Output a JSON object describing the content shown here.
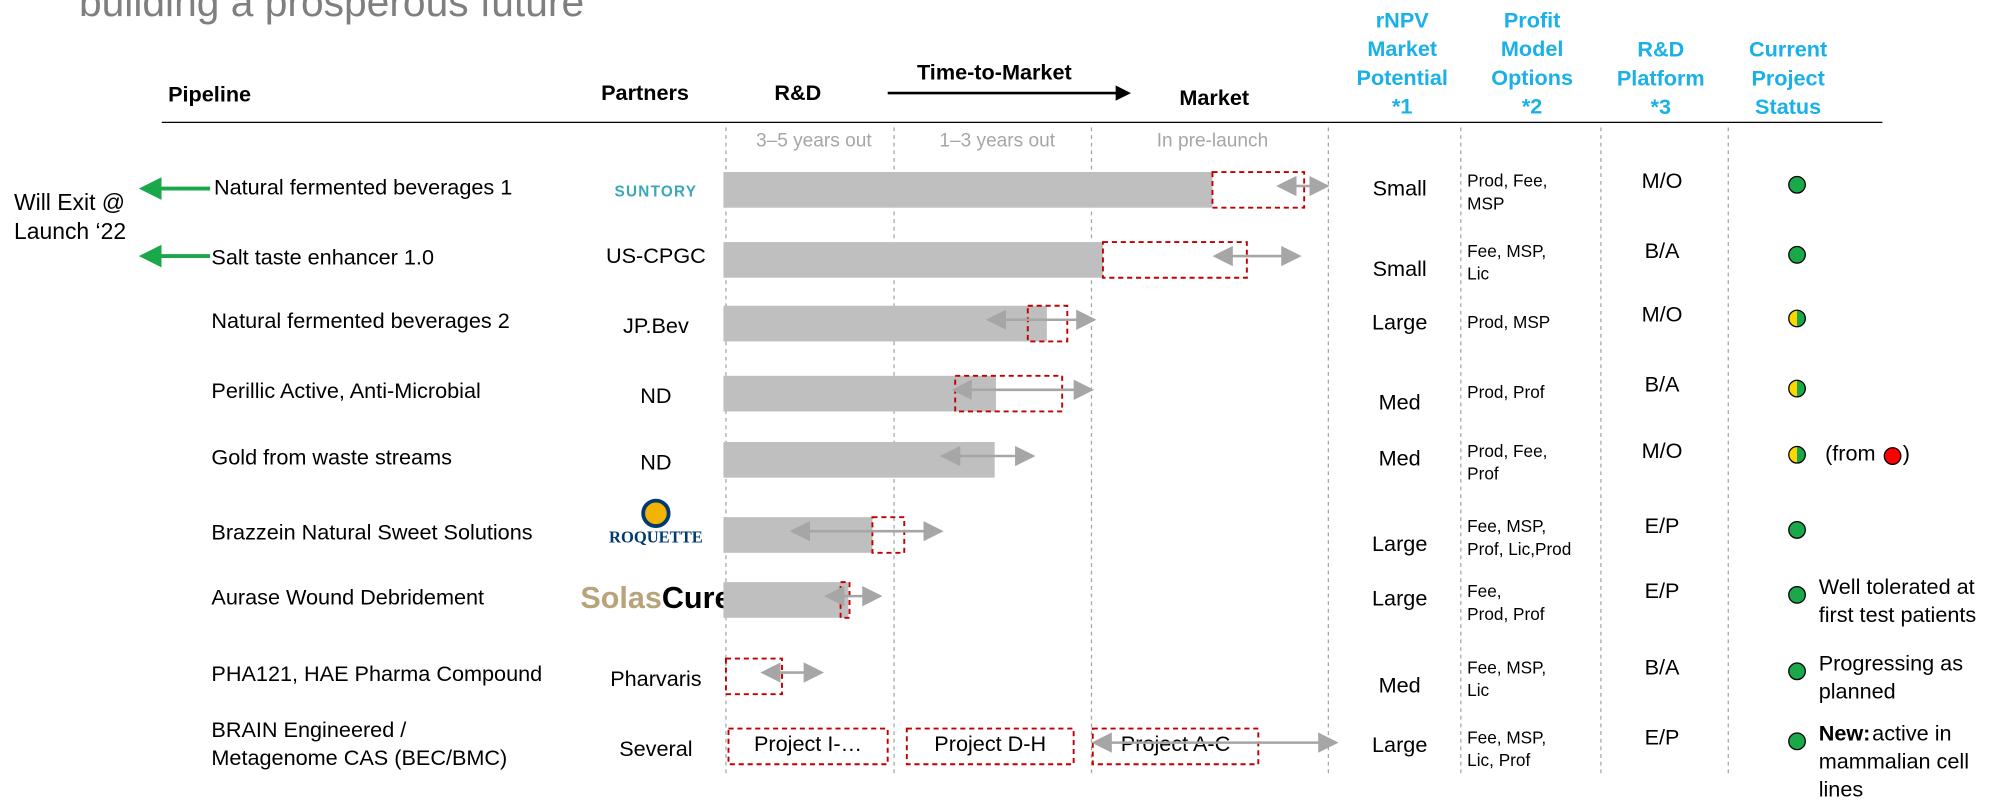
{
  "title": "building a prosperous future",
  "headers": {
    "pipeline": "Pipeline",
    "partners": "Partners",
    "rd": "R&D",
    "time_to_market": "Time-to-Market",
    "market": "Market",
    "rnpv": [
      "rNPV",
      "Market",
      "Potential",
      "*1"
    ],
    "profit": [
      "Profit",
      "Model",
      "Options",
      "*2"
    ],
    "platform": [
      "R&D",
      "Platform",
      "*3"
    ],
    "status": [
      "Current",
      "Project",
      "Status"
    ]
  },
  "phases": [
    "3–5 years out",
    "1–3 years out",
    "In pre-launch"
  ],
  "exit_note": [
    "Will Exit @",
    "Launch ‘22"
  ],
  "rows": [
    {
      "name": [
        "Natural fermented beverages 1"
      ],
      "partner": "SUNTORY",
      "rnpv": "Small",
      "profit": [
        "Prod, Fee,",
        "MSP"
      ],
      "platform": "M/O",
      "status_color": "#1aa84a"
    },
    {
      "name": [
        "Salt taste enhancer 1.0"
      ],
      "partner": "US-CPGC",
      "rnpv": "Small",
      "profit": [
        "Fee, MSP,",
        "Lic"
      ],
      "platform": "B/A",
      "status_color": "#1aa84a"
    },
    {
      "name": [
        "Natural fermented beverages 2"
      ],
      "partner": "JP.Bev",
      "rnpv": "Large",
      "profit": [
        "Prod, MSP"
      ],
      "platform": "M/O",
      "status_color": "half"
    },
    {
      "name": [
        "Perillic Active, Anti-Microbial"
      ],
      "partner": "ND",
      "rnpv": "Med",
      "profit": [
        "Prod, Prof"
      ],
      "platform": "B/A",
      "status_color": "half"
    },
    {
      "name": [
        "Gold from waste streams"
      ],
      "partner": "ND",
      "rnpv": "Med",
      "profit": [
        "Prod, Fee,",
        "Prof"
      ],
      "platform": "M/O",
      "status_color": "half",
      "note": [
        "(from"
      ],
      "note_color": "#ff0000",
      "note_end": ")"
    },
    {
      "name": [
        "Brazzein Natural Sweet Solutions"
      ],
      "partner": "ROQUETTE",
      "rnpv": "Large",
      "profit": [
        "Fee, MSP,",
        "Prof, Lic,Prod"
      ],
      "platform": "E/P",
      "status_color": "#1aa84a"
    },
    {
      "name": [
        "Aurase Wound Debridement"
      ],
      "partner": [
        "Solas",
        "Cure"
      ],
      "rnpv": "Large",
      "profit": [
        "Fee,",
        "Prod, Prof"
      ],
      "platform": "E/P",
      "status_color": "#1aa84a",
      "note": [
        "Well tolerated at",
        "first test patients"
      ]
    },
    {
      "name": [
        "PHA121, HAE Pharma Compound"
      ],
      "partner": "Pharvaris",
      "rnpv": "Med",
      "profit": [
        "Fee, MSP,",
        "Lic"
      ],
      "platform": "B/A",
      "status_color": "#1aa84a",
      "note": [
        "Progressing as",
        "planned"
      ]
    },
    {
      "name": [
        "BRAIN Engineered /",
        "Metagenome CAS (BEC/BMC)"
      ],
      "partner": "Several",
      "rnpv": "Large",
      "profit": [
        "Fee, MSP,",
        "Lic, Prof"
      ],
      "platform": "E/P",
      "status_color": "#1aa84a",
      "note_bold": "New:",
      "note": [
        " active in",
        "mammalian cell",
        "lines"
      ],
      "projects": [
        "Project I-…",
        "Project D-H",
        "Project A-C"
      ]
    }
  ]
}
